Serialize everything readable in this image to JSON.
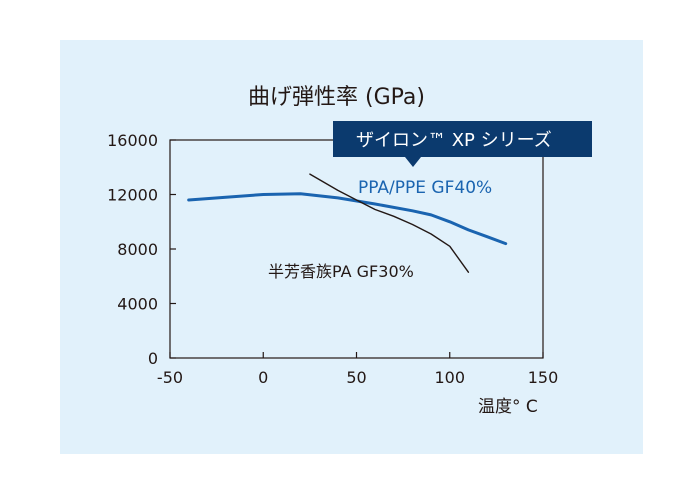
{
  "chart_data": {
    "type": "line",
    "title": "曲げ弾性率 (GPa)",
    "xlabel": "温度° C",
    "ylabel": "",
    "xlim": [
      -50,
      150
    ],
    "ylim": [
      0,
      16000
    ],
    "xticks": [
      "-50",
      "0",
      "50",
      "100",
      "150"
    ],
    "yticks": [
      "0",
      "4000",
      "8000",
      "12000",
      "16000"
    ],
    "grid": false,
    "legend_banner": "ザイロン™ XP シリーズ",
    "series": [
      {
        "name": "PPA/PPE GF40%",
        "color": "#1a64b0",
        "x": [
          -40,
          -20,
          0,
          20,
          40,
          60,
          80,
          90,
          100,
          110,
          120,
          130
        ],
        "y": [
          11600,
          11800,
          12000,
          12050,
          11750,
          11300,
          10800,
          10500,
          10000,
          9400,
          8900,
          8400
        ]
      },
      {
        "name": "半芳香族PA GF30%",
        "color": "#231815",
        "x": [
          25,
          40,
          50,
          60,
          70,
          80,
          90,
          100,
          110
        ],
        "y": [
          13500,
          12300,
          11600,
          10900,
          10400,
          9800,
          9100,
          8200,
          6300
        ]
      }
    ]
  }
}
